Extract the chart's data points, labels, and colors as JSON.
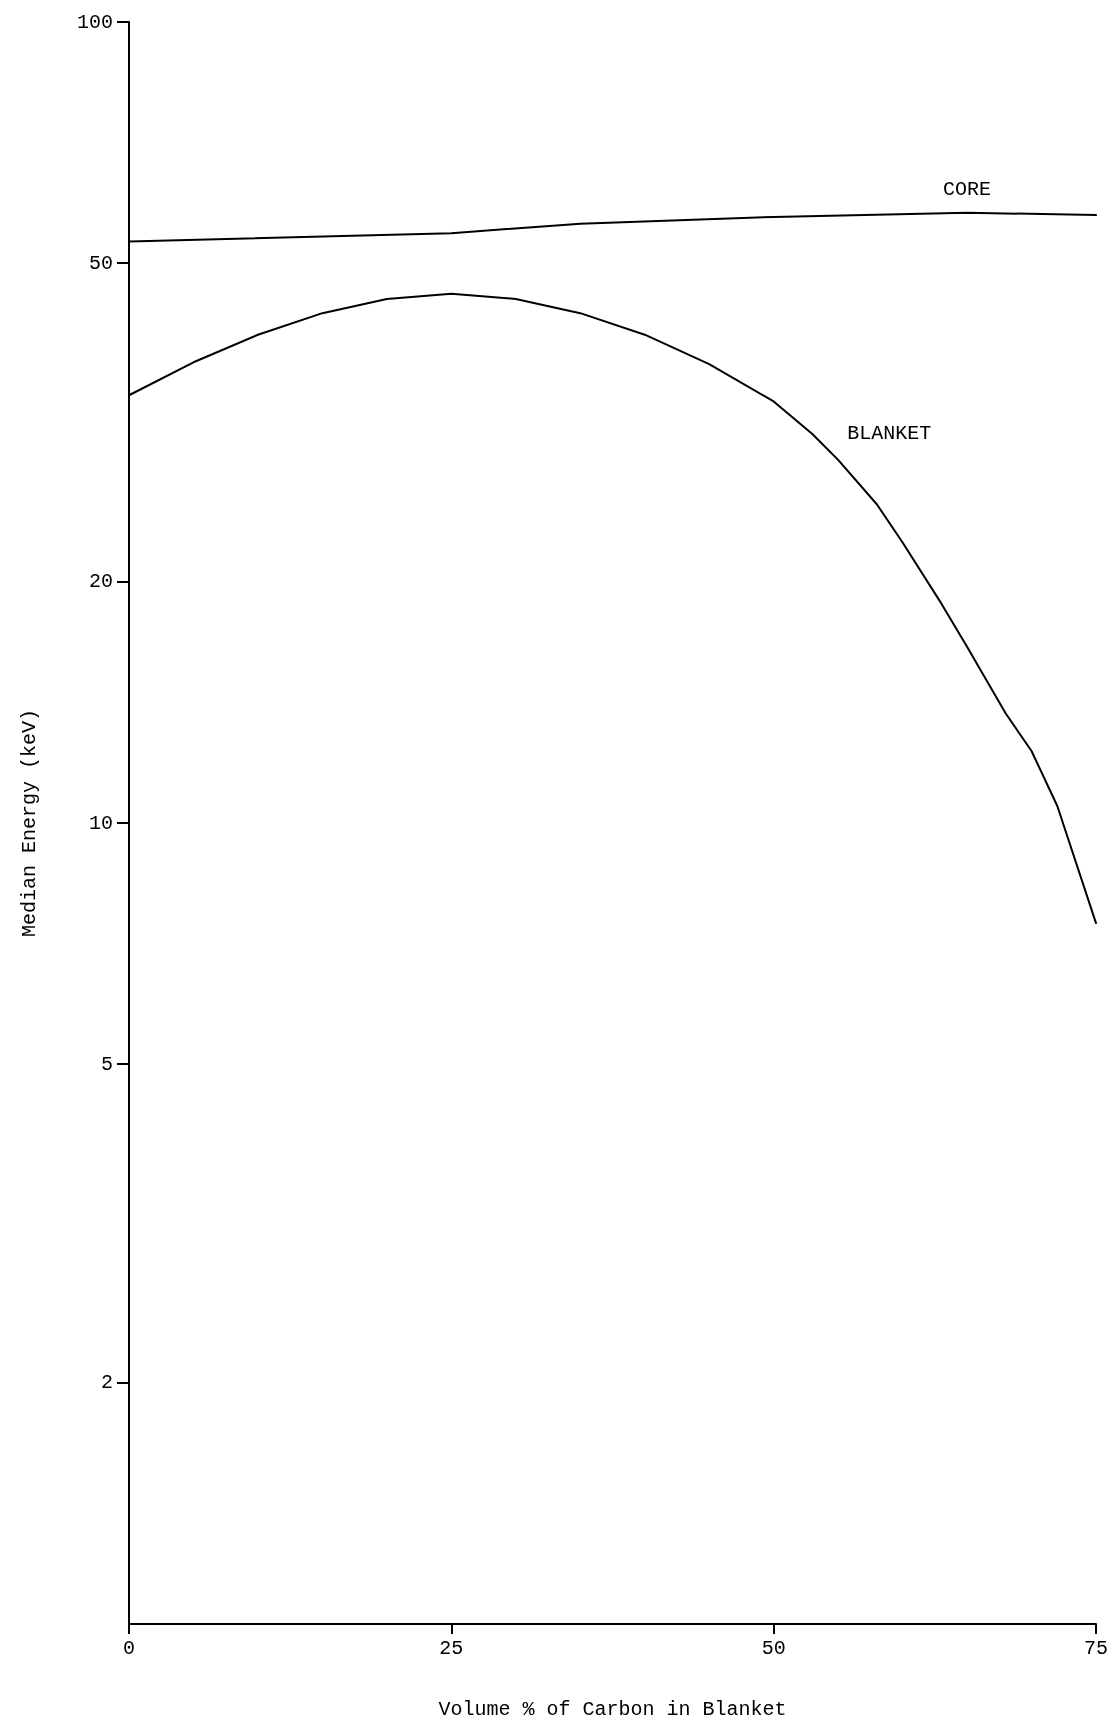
{
  "chart_data": {
    "type": "line",
    "xlabel": "Volume % of Carbon in Blanket",
    "ylabel": "Median Energy (keV)",
    "log": "y",
    "grid": false,
    "legend": false,
    "marker": "none",
    "line_style": "solid",
    "xlim": [
      0,
      75
    ],
    "xticks": [
      0,
      25,
      50,
      75
    ],
    "ylim": [
      1,
      100
    ],
    "yticks": [
      2,
      5,
      10,
      20,
      50,
      100
    ],
    "series": [
      {
        "name": "CORE",
        "color": "#000000",
        "x": [
          0,
          25,
          35,
          50,
          65,
          75
        ],
        "values": [
          53.2,
          54.5,
          56,
          57.1,
          57.8,
          57.4
        ]
      },
      {
        "name": "BLANKET",
        "color": "#000000",
        "x": [
          0,
          5,
          10,
          15,
          20,
          25,
          30,
          35,
          40,
          45,
          50,
          53,
          55,
          58,
          60,
          63,
          65,
          68,
          70,
          72,
          75
        ],
        "values": [
          34.2,
          37.6,
          40.7,
          43.3,
          45.1,
          45.8,
          45.1,
          43.3,
          40.7,
          37.4,
          33.6,
          30.6,
          28.4,
          25.0,
          22.4,
          18.8,
          16.6,
          13.7,
          12.3,
          10.5,
          7.5
        ]
      }
    ]
  }
}
